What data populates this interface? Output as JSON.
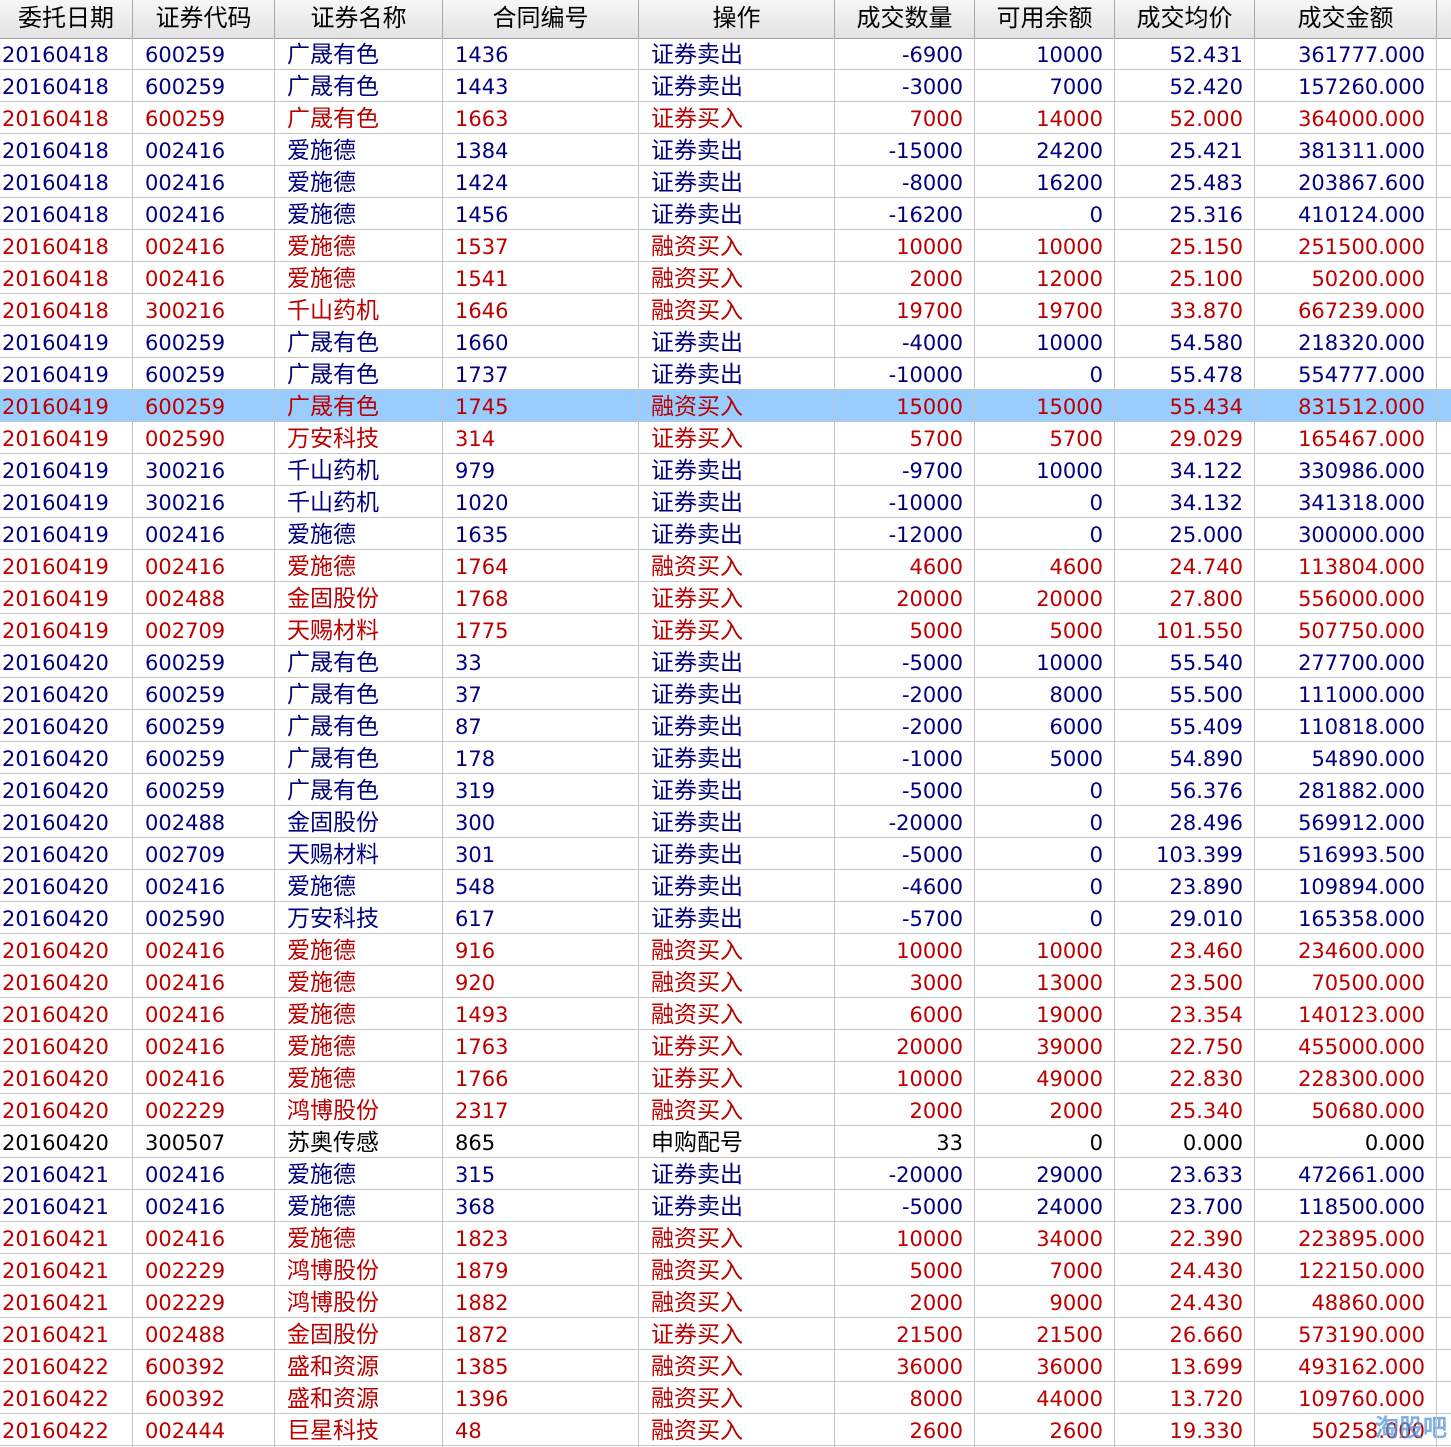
{
  "headers": [
    "委托日期",
    "证券代码",
    "证券名称",
    "合同编号",
    "操作",
    "成交数量",
    "可用余额",
    "成交均价",
    "成交金额"
  ],
  "selected_row": 11,
  "colors": {
    "blue": "#000080",
    "red": "#bb0000",
    "black": "#000000",
    "selection": "#99ccff"
  },
  "rows": [
    {
      "date": "20160418",
      "code": "600259",
      "name": "广晟有色",
      "contract": "1436",
      "op": "证券卖出",
      "qty": "-6900",
      "avail": "10000",
      "price": "52.431",
      "amount": "361777.000",
      "color": "blue"
    },
    {
      "date": "20160418",
      "code": "600259",
      "name": "广晟有色",
      "contract": "1443",
      "op": "证券卖出",
      "qty": "-3000",
      "avail": "7000",
      "price": "52.420",
      "amount": "157260.000",
      "color": "blue"
    },
    {
      "date": "20160418",
      "code": "600259",
      "name": "广晟有色",
      "contract": "1663",
      "op": "证券买入",
      "qty": "7000",
      "avail": "14000",
      "price": "52.000",
      "amount": "364000.000",
      "color": "red"
    },
    {
      "date": "20160418",
      "code": "002416",
      "name": "爱施德",
      "contract": "1384",
      "op": "证券卖出",
      "qty": "-15000",
      "avail": "24200",
      "price": "25.421",
      "amount": "381311.000",
      "color": "blue"
    },
    {
      "date": "20160418",
      "code": "002416",
      "name": "爱施德",
      "contract": "1424",
      "op": "证券卖出",
      "qty": "-8000",
      "avail": "16200",
      "price": "25.483",
      "amount": "203867.600",
      "color": "blue"
    },
    {
      "date": "20160418",
      "code": "002416",
      "name": "爱施德",
      "contract": "1456",
      "op": "证券卖出",
      "qty": "-16200",
      "avail": "0",
      "price": "25.316",
      "amount": "410124.000",
      "color": "blue"
    },
    {
      "date": "20160418",
      "code": "002416",
      "name": "爱施德",
      "contract": "1537",
      "op": "融资买入",
      "qty": "10000",
      "avail": "10000",
      "price": "25.150",
      "amount": "251500.000",
      "color": "red"
    },
    {
      "date": "20160418",
      "code": "002416",
      "name": "爱施德",
      "contract": "1541",
      "op": "融资买入",
      "qty": "2000",
      "avail": "12000",
      "price": "25.100",
      "amount": "50200.000",
      "color": "red"
    },
    {
      "date": "20160418",
      "code": "300216",
      "name": "千山药机",
      "contract": "1646",
      "op": "融资买入",
      "qty": "19700",
      "avail": "19700",
      "price": "33.870",
      "amount": "667239.000",
      "color": "red"
    },
    {
      "date": "20160419",
      "code": "600259",
      "name": "广晟有色",
      "contract": "1660",
      "op": "证券卖出",
      "qty": "-4000",
      "avail": "10000",
      "price": "54.580",
      "amount": "218320.000",
      "color": "blue"
    },
    {
      "date": "20160419",
      "code": "600259",
      "name": "广晟有色",
      "contract": "1737",
      "op": "证券卖出",
      "qty": "-10000",
      "avail": "0",
      "price": "55.478",
      "amount": "554777.000",
      "color": "blue"
    },
    {
      "date": "20160419",
      "code": "600259",
      "name": "广晟有色",
      "contract": "1745",
      "op": "融资买入",
      "qty": "15000",
      "avail": "15000",
      "price": "55.434",
      "amount": "831512.000",
      "color": "red"
    },
    {
      "date": "20160419",
      "code": "002590",
      "name": "万安科技",
      "contract": "314",
      "op": "证券买入",
      "qty": "5700",
      "avail": "5700",
      "price": "29.029",
      "amount": "165467.000",
      "color": "red"
    },
    {
      "date": "20160419",
      "code": "300216",
      "name": "千山药机",
      "contract": "979",
      "op": "证券卖出",
      "qty": "-9700",
      "avail": "10000",
      "price": "34.122",
      "amount": "330986.000",
      "color": "blue"
    },
    {
      "date": "20160419",
      "code": "300216",
      "name": "千山药机",
      "contract": "1020",
      "op": "证券卖出",
      "qty": "-10000",
      "avail": "0",
      "price": "34.132",
      "amount": "341318.000",
      "color": "blue"
    },
    {
      "date": "20160419",
      "code": "002416",
      "name": "爱施德",
      "contract": "1635",
      "op": "证券卖出",
      "qty": "-12000",
      "avail": "0",
      "price": "25.000",
      "amount": "300000.000",
      "color": "blue"
    },
    {
      "date": "20160419",
      "code": "002416",
      "name": "爱施德",
      "contract": "1764",
      "op": "融资买入",
      "qty": "4600",
      "avail": "4600",
      "price": "24.740",
      "amount": "113804.000",
      "color": "red"
    },
    {
      "date": "20160419",
      "code": "002488",
      "name": "金固股份",
      "contract": "1768",
      "op": "证券买入",
      "qty": "20000",
      "avail": "20000",
      "price": "27.800",
      "amount": "556000.000",
      "color": "red"
    },
    {
      "date": "20160419",
      "code": "002709",
      "name": "天赐材料",
      "contract": "1775",
      "op": "证券买入",
      "qty": "5000",
      "avail": "5000",
      "price": "101.550",
      "amount": "507750.000",
      "color": "red"
    },
    {
      "date": "20160420",
      "code": "600259",
      "name": "广晟有色",
      "contract": "33",
      "op": "证券卖出",
      "qty": "-5000",
      "avail": "10000",
      "price": "55.540",
      "amount": "277700.000",
      "color": "blue"
    },
    {
      "date": "20160420",
      "code": "600259",
      "name": "广晟有色",
      "contract": "37",
      "op": "证券卖出",
      "qty": "-2000",
      "avail": "8000",
      "price": "55.500",
      "amount": "111000.000",
      "color": "blue"
    },
    {
      "date": "20160420",
      "code": "600259",
      "name": "广晟有色",
      "contract": "87",
      "op": "证券卖出",
      "qty": "-2000",
      "avail": "6000",
      "price": "55.409",
      "amount": "110818.000",
      "color": "blue"
    },
    {
      "date": "20160420",
      "code": "600259",
      "name": "广晟有色",
      "contract": "178",
      "op": "证券卖出",
      "qty": "-1000",
      "avail": "5000",
      "price": "54.890",
      "amount": "54890.000",
      "color": "blue"
    },
    {
      "date": "20160420",
      "code": "600259",
      "name": "广晟有色",
      "contract": "319",
      "op": "证券卖出",
      "qty": "-5000",
      "avail": "0",
      "price": "56.376",
      "amount": "281882.000",
      "color": "blue"
    },
    {
      "date": "20160420",
      "code": "002488",
      "name": "金固股份",
      "contract": "300",
      "op": "证券卖出",
      "qty": "-20000",
      "avail": "0",
      "price": "28.496",
      "amount": "569912.000",
      "color": "blue"
    },
    {
      "date": "20160420",
      "code": "002709",
      "name": "天赐材料",
      "contract": "301",
      "op": "证券卖出",
      "qty": "-5000",
      "avail": "0",
      "price": "103.399",
      "amount": "516993.500",
      "color": "blue"
    },
    {
      "date": "20160420",
      "code": "002416",
      "name": "爱施德",
      "contract": "548",
      "op": "证券卖出",
      "qty": "-4600",
      "avail": "0",
      "price": "23.890",
      "amount": "109894.000",
      "color": "blue"
    },
    {
      "date": "20160420",
      "code": "002590",
      "name": "万安科技",
      "contract": "617",
      "op": "证券卖出",
      "qty": "-5700",
      "avail": "0",
      "price": "29.010",
      "amount": "165358.000",
      "color": "blue"
    },
    {
      "date": "20160420",
      "code": "002416",
      "name": "爱施德",
      "contract": "916",
      "op": "融资买入",
      "qty": "10000",
      "avail": "10000",
      "price": "23.460",
      "amount": "234600.000",
      "color": "red"
    },
    {
      "date": "20160420",
      "code": "002416",
      "name": "爱施德",
      "contract": "920",
      "op": "融资买入",
      "qty": "3000",
      "avail": "13000",
      "price": "23.500",
      "amount": "70500.000",
      "color": "red"
    },
    {
      "date": "20160420",
      "code": "002416",
      "name": "爱施德",
      "contract": "1493",
      "op": "融资买入",
      "qty": "6000",
      "avail": "19000",
      "price": "23.354",
      "amount": "140123.000",
      "color": "red"
    },
    {
      "date": "20160420",
      "code": "002416",
      "name": "爱施德",
      "contract": "1763",
      "op": "证券买入",
      "qty": "20000",
      "avail": "39000",
      "price": "22.750",
      "amount": "455000.000",
      "color": "red"
    },
    {
      "date": "20160420",
      "code": "002416",
      "name": "爱施德",
      "contract": "1766",
      "op": "证券买入",
      "qty": "10000",
      "avail": "49000",
      "price": "22.830",
      "amount": "228300.000",
      "color": "red"
    },
    {
      "date": "20160420",
      "code": "002229",
      "name": "鸿博股份",
      "contract": "2317",
      "op": "融资买入",
      "qty": "2000",
      "avail": "2000",
      "price": "25.340",
      "amount": "50680.000",
      "color": "red"
    },
    {
      "date": "20160420",
      "code": "300507",
      "name": "苏奥传感",
      "contract": "865",
      "op": "申购配号",
      "qty": "33",
      "avail": "0",
      "price": "0.000",
      "amount": "0.000",
      "color": "black"
    },
    {
      "date": "20160421",
      "code": "002416",
      "name": "爱施德",
      "contract": "315",
      "op": "证券卖出",
      "qty": "-20000",
      "avail": "29000",
      "price": "23.633",
      "amount": "472661.000",
      "color": "blue"
    },
    {
      "date": "20160421",
      "code": "002416",
      "name": "爱施德",
      "contract": "368",
      "op": "证券卖出",
      "qty": "-5000",
      "avail": "24000",
      "price": "23.700",
      "amount": "118500.000",
      "color": "blue"
    },
    {
      "date": "20160421",
      "code": "002416",
      "name": "爱施德",
      "contract": "1823",
      "op": "融资买入",
      "qty": "10000",
      "avail": "34000",
      "price": "22.390",
      "amount": "223895.000",
      "color": "red"
    },
    {
      "date": "20160421",
      "code": "002229",
      "name": "鸿博股份",
      "contract": "1879",
      "op": "融资买入",
      "qty": "5000",
      "avail": "7000",
      "price": "24.430",
      "amount": "122150.000",
      "color": "red"
    },
    {
      "date": "20160421",
      "code": "002229",
      "name": "鸿博股份",
      "contract": "1882",
      "op": "融资买入",
      "qty": "2000",
      "avail": "9000",
      "price": "24.430",
      "amount": "48860.000",
      "color": "red"
    },
    {
      "date": "20160421",
      "code": "002488",
      "name": "金固股份",
      "contract": "1872",
      "op": "证券买入",
      "qty": "21500",
      "avail": "21500",
      "price": "26.660",
      "amount": "573190.000",
      "color": "red"
    },
    {
      "date": "20160422",
      "code": "600392",
      "name": "盛和资源",
      "contract": "1385",
      "op": "融资买入",
      "qty": "36000",
      "avail": "36000",
      "price": "13.699",
      "amount": "493162.000",
      "color": "red"
    },
    {
      "date": "20160422",
      "code": "600392",
      "name": "盛和资源",
      "contract": "1396",
      "op": "融资买入",
      "qty": "8000",
      "avail": "44000",
      "price": "13.720",
      "amount": "109760.000",
      "color": "red"
    },
    {
      "date": "20160422",
      "code": "002444",
      "name": "巨星科技",
      "contract": "48",
      "op": "融资买入",
      "qty": "2600",
      "avail": "2600",
      "price": "19.330",
      "amount": "50258.000",
      "color": "red"
    }
  ],
  "watermark": "淘股吧"
}
